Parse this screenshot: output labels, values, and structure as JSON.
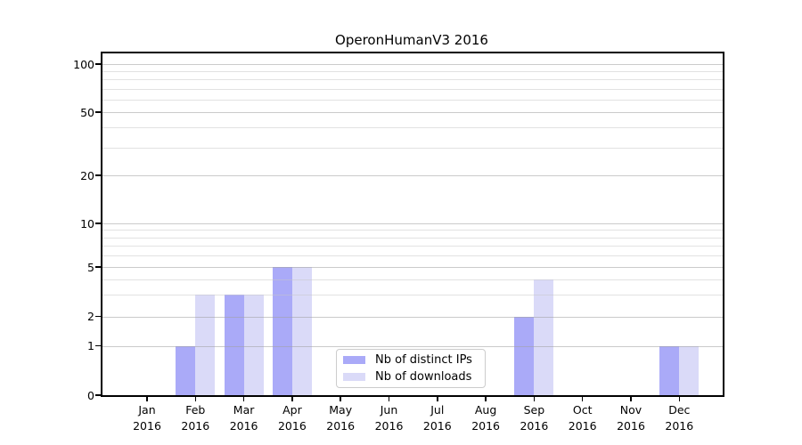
{
  "title": "OperonHumanV3 2016",
  "chart_data": {
    "type": "bar",
    "title": "OperonHumanV3 2016",
    "categories": [
      "Jan 2016",
      "Feb 2016",
      "Mar 2016",
      "Apr 2016",
      "May 2016",
      "Jun 2016",
      "Jul 2016",
      "Aug 2016",
      "Sep 2016",
      "Oct 2016",
      "Nov 2016",
      "Dec 2016"
    ],
    "series": [
      {
        "name": "Nb of distinct IPs",
        "color": "#aaaaf8",
        "values": [
          0,
          1,
          3,
          5,
          0,
          0,
          0,
          0,
          2,
          0,
          0,
          1
        ]
      },
      {
        "name": "Nb of downloads",
        "color": "#dadaf8",
        "values": [
          0,
          3,
          3,
          5,
          0,
          0,
          0,
          0,
          4,
          0,
          0,
          1
        ]
      }
    ],
    "xlabel": "",
    "ylabel": "",
    "yscale": "log-like",
    "yticks": [
      0,
      1,
      2,
      5,
      10,
      20,
      50,
      100
    ],
    "ylim": [
      0,
      120
    ],
    "grid": "horizontal major and minor",
    "legend_position": "lower center"
  },
  "legend": {
    "items": [
      {
        "label": "Nb of distinct IPs",
        "color": "#aaaaf8"
      },
      {
        "label": "Nb of downloads",
        "color": "#dadaf8"
      }
    ]
  }
}
